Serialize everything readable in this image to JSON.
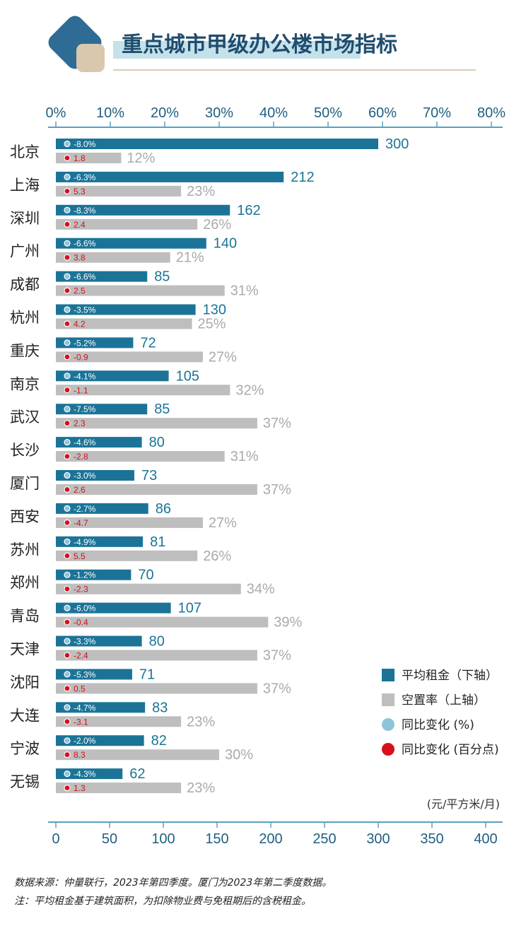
{
  "title": "重点城市甲级办公楼市场指标",
  "unit_label": "(元/平方米/月)",
  "footnotes": [
    "数据来源：仲量联行，2023年第四季度。厦门为2023年第二季度数据。",
    "注：平均租金基于建筑面积，为扣除物业费与免租期后的含税租金。"
  ],
  "legend": [
    {
      "label": "平均租金（下轴）",
      "marker": "square",
      "color": "#1b7497"
    },
    {
      "label": "空置率（上轴）",
      "marker": "square",
      "color": "#bebebe"
    },
    {
      "label": "同比变化 (%)",
      "marker": "circle",
      "color": "#8fc3d8"
    },
    {
      "label": "同比变化 (百分点)",
      "marker": "circle",
      "color": "#d7101b"
    }
  ],
  "colors": {
    "rent_bar": "#1b7497",
    "vacancy_bar": "#bebebe",
    "vacancy_label": "#aaaaaa",
    "axis": "#5b9fc0",
    "change_rent_dot": "#8fc3d8",
    "change_vacancy_dot": "#d7101b",
    "title_highlight": "#c5e1ea",
    "title_underline": "#d8ccb8",
    "logo_dark": "#2e6b95",
    "logo_light": "#d9c7ae"
  },
  "chart_data": {
    "type": "bar",
    "orientation": "horizontal",
    "categories": [
      "北京",
      "上海",
      "深圳",
      "广州",
      "成都",
      "杭州",
      "重庆",
      "南京",
      "武汉",
      "长沙",
      "厦门",
      "西安",
      "苏州",
      "郑州",
      "青岛",
      "天津",
      "沈阳",
      "大连",
      "宁波",
      "无锡"
    ],
    "series": [
      {
        "name": "平均租金（下轴）",
        "axis": "bottom",
        "values": [
          300,
          212,
          162,
          140,
          85,
          130,
          72,
          105,
          85,
          80,
          73,
          86,
          81,
          70,
          107,
          80,
          71,
          83,
          82,
          62
        ],
        "labels": [
          "300",
          "212",
          "162",
          "140",
          "85",
          "130",
          "72",
          "105",
          "85",
          "80",
          "73",
          "86",
          "81",
          "70",
          "107",
          "80",
          "71",
          "83",
          "82",
          "62"
        ]
      },
      {
        "name": "空置率（上轴）",
        "axis": "top",
        "values": [
          12,
          23,
          26,
          21,
          31,
          25,
          27,
          32,
          37,
          31,
          37,
          27,
          26,
          34,
          39,
          37,
          37,
          23,
          30,
          23
        ],
        "labels": [
          "12%",
          "23%",
          "26%",
          "21%",
          "31%",
          "25%",
          "27%",
          "32%",
          "37%",
          "31%",
          "37%",
          "27%",
          "26%",
          "34%",
          "39%",
          "37%",
          "37%",
          "23%",
          "30%",
          "23%"
        ]
      },
      {
        "name": "同比变化 (%)",
        "attached_to": "平均租金（下轴）",
        "values": [
          -8.0,
          -6.3,
          -8.3,
          -6.6,
          -6.6,
          -3.5,
          -5.2,
          -4.1,
          -7.5,
          -4.6,
          -3.0,
          -2.7,
          -4.9,
          -1.2,
          -6.0,
          -3.3,
          -5.3,
          -4.7,
          -2.0,
          -4.3
        ],
        "labels": [
          "-8.0%",
          "-6.3%",
          "-8.3%",
          "-6.6%",
          "-6.6%",
          "-3.5%",
          "-5.2%",
          "-4.1%",
          "-7.5%",
          "-4.6%",
          "-3.0%",
          "-2.7%",
          "-4.9%",
          "-1.2%",
          "-6.0%",
          "-3.3%",
          "-5.3%",
          "-4.7%",
          "-2.0%",
          "-4.3%"
        ]
      },
      {
        "name": "同比变化 (百分点)",
        "attached_to": "空置率（上轴）",
        "values": [
          1.8,
          5.3,
          2.4,
          3.8,
          2.5,
          4.2,
          -0.9,
          -1.1,
          2.3,
          -2.8,
          2.6,
          -4.7,
          5.5,
          -2.3,
          -0.4,
          -2.4,
          0.5,
          -3.1,
          8.3,
          1.3
        ],
        "labels": [
          "1.8",
          "5.3",
          "2.4",
          "3.8",
          "2.5",
          "4.2",
          "-0.9",
          "-1.1",
          "2.3",
          "-2.8",
          "2.6",
          "-4.7",
          "5.5",
          "-2.3",
          "-0.4",
          "-2.4",
          "0.5",
          "-3.1",
          "8.3",
          "1.3"
        ]
      }
    ],
    "top_axis": {
      "label": "",
      "range": [
        0,
        80
      ],
      "ticks": [
        "0%",
        "10%",
        "20%",
        "30%",
        "40%",
        "50%",
        "60%",
        "70%",
        "80%"
      ]
    },
    "bottom_axis": {
      "label": "(元/平方米/月)",
      "range": [
        0,
        400
      ],
      "ticks": [
        "0",
        "50",
        "100",
        "150",
        "200",
        "250",
        "300",
        "350",
        "400"
      ]
    },
    "legend_position": "bottom-right",
    "grid": false
  }
}
